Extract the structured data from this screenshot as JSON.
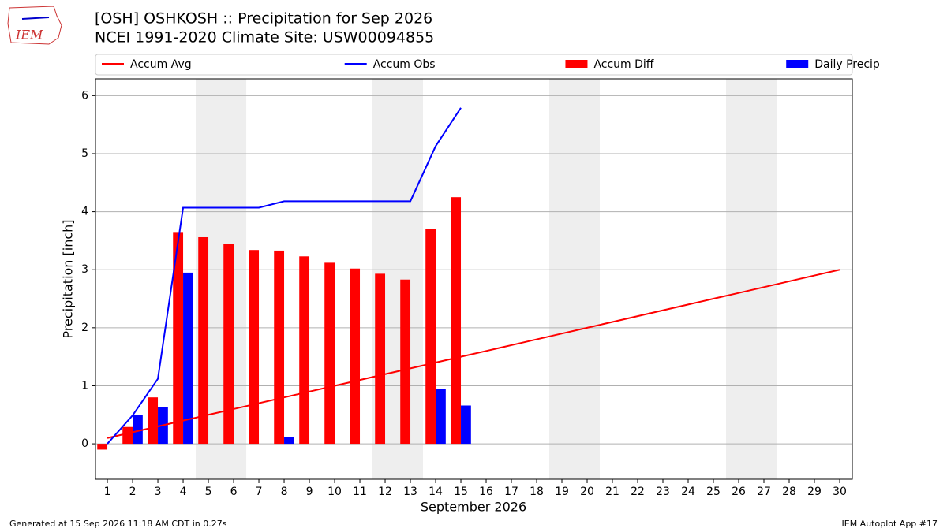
{
  "chart_data": {
    "type": "bar_line",
    "logo_text": "IEM",
    "title": "[OSH] OSHKOSH :: Precipitation for Sep 2026",
    "subtitle": "NCEI 1991-2020 Climate Site: USW00094855",
    "x_label": "September 2026",
    "y_label": "Precipitation [inch]",
    "footer_left": "Generated at 15 Sep 2026 11:18 AM CDT in 0.27s",
    "footer_right": "IEM Autoplot App #17",
    "x": [
      1,
      2,
      3,
      4,
      5,
      6,
      7,
      8,
      9,
      10,
      11,
      12,
      13,
      14,
      15,
      16,
      17,
      18,
      19,
      20,
      21,
      22,
      23,
      24,
      25,
      26,
      27,
      28,
      29,
      30
    ],
    "xlim": [
      0.53,
      30.5
    ],
    "xticks": [
      1,
      2,
      3,
      4,
      5,
      6,
      7,
      8,
      9,
      10,
      11,
      12,
      13,
      14,
      15,
      16,
      17,
      18,
      19,
      20,
      21,
      22,
      23,
      24,
      25,
      26,
      27,
      28,
      29,
      30
    ],
    "ylim": [
      -0.61,
      6.29
    ],
    "yticks": [
      0,
      1,
      2,
      3,
      4,
      5,
      6
    ],
    "grid": true,
    "shaded_spans": [
      [
        4.5,
        6.5
      ],
      [
        11.5,
        13.5
      ],
      [
        18.5,
        20.5
      ],
      [
        25.5,
        27.5
      ]
    ],
    "series": [
      {
        "name": "Accum Avg",
        "kind": "line",
        "color": "#ff0000",
        "values": [
          0.1,
          0.2,
          0.3,
          0.4,
          0.5,
          0.6,
          0.7,
          0.8,
          0.9,
          1.0,
          1.1,
          1.2,
          1.3,
          1.4,
          1.5,
          1.6,
          1.7,
          1.8,
          1.9,
          2.0,
          2.1,
          2.2,
          2.3,
          2.4,
          2.5,
          2.6,
          2.7,
          2.8,
          2.9,
          3.0
        ]
      },
      {
        "name": "Accum Obs",
        "kind": "line",
        "color": "#0000ff",
        "values": [
          0,
          0.49,
          1.12,
          4.07,
          4.07,
          4.07,
          4.07,
          4.18,
          4.18,
          4.18,
          4.18,
          4.18,
          4.18,
          5.13,
          5.79,
          null,
          null,
          null,
          null,
          null,
          null,
          null,
          null,
          null,
          null,
          null,
          null,
          null,
          null,
          null
        ]
      },
      {
        "name": "Accum Diff",
        "kind": "bar",
        "offset": -0.4,
        "color": "#ff0000",
        "values": [
          -0.1,
          0.29,
          0.8,
          3.65,
          3.56,
          3.44,
          3.34,
          3.33,
          3.23,
          3.12,
          3.02,
          2.93,
          2.83,
          3.7,
          4.25,
          null,
          null,
          null,
          null,
          null,
          null,
          null,
          null,
          null,
          null,
          null,
          null,
          null,
          null,
          null
        ]
      },
      {
        "name": "Daily Precip",
        "kind": "bar",
        "offset": 0,
        "color": "#0000ff",
        "values": [
          0,
          0.49,
          0.63,
          2.95,
          0,
          0,
          0,
          0.11,
          0,
          0,
          0,
          0,
          0,
          0.95,
          0.66,
          null,
          null,
          null,
          null,
          null,
          null,
          null,
          null,
          null,
          null,
          null,
          null,
          null,
          null,
          null
        ]
      }
    ]
  }
}
